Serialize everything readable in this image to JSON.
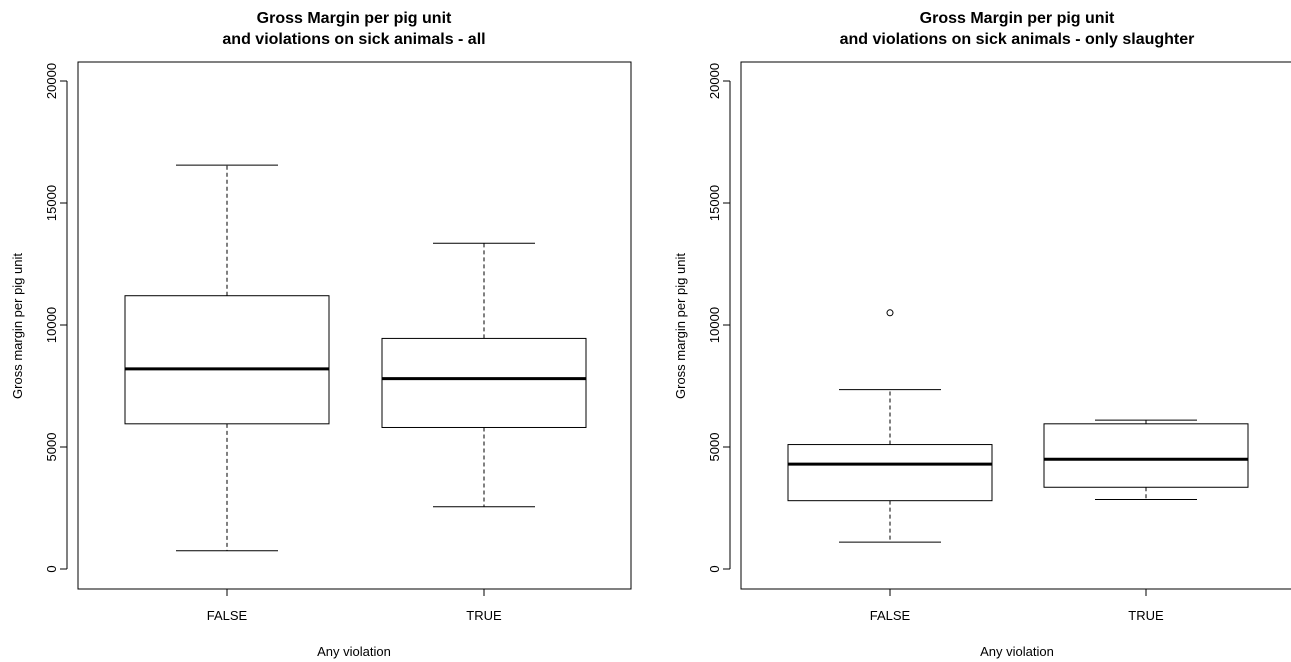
{
  "chart_data": [
    {
      "type": "boxplot",
      "title_line1": "Gross Margin per pig unit",
      "title_line2": "and violations on sick animals - all",
      "xlabel": "Any violation",
      "ylabel": "Gross margin per pig unit",
      "ylim": [
        0,
        20000
      ],
      "yticks": [
        "0",
        "5000",
        "10000",
        "15000",
        "20000"
      ],
      "grid": false,
      "categories": [
        "FALSE",
        "TRUE"
      ],
      "boxes": [
        {
          "category": "FALSE",
          "whisker_low": 750,
          "q1": 5950,
          "median": 8200,
          "q3": 11200,
          "whisker_high": 16550,
          "outliers": []
        },
        {
          "category": "TRUE",
          "whisker_low": 2550,
          "q1": 5800,
          "median": 7800,
          "q3": 9450,
          "whisker_high": 13350,
          "outliers": []
        }
      ]
    },
    {
      "type": "boxplot",
      "title_line1": "Gross Margin per pig unit",
      "title_line2": "and violations on sick animals - only slaughter",
      "xlabel": "Any violation",
      "ylabel": "Gross margin per pig unit",
      "ylim": [
        0,
        20000
      ],
      "yticks": [
        "0",
        "5000",
        "10000",
        "15000",
        "20000"
      ],
      "grid": false,
      "categories": [
        "FALSE",
        "TRUE"
      ],
      "boxes": [
        {
          "category": "FALSE",
          "whisker_low": 1100,
          "q1": 2800,
          "median": 4300,
          "q3": 5100,
          "whisker_high": 7350,
          "outliers": [
            10500
          ]
        },
        {
          "category": "TRUE",
          "whisker_low": 2850,
          "q1": 3350,
          "median": 4500,
          "q3": 5950,
          "whisker_high": 6100,
          "outliers": []
        }
      ]
    }
  ]
}
